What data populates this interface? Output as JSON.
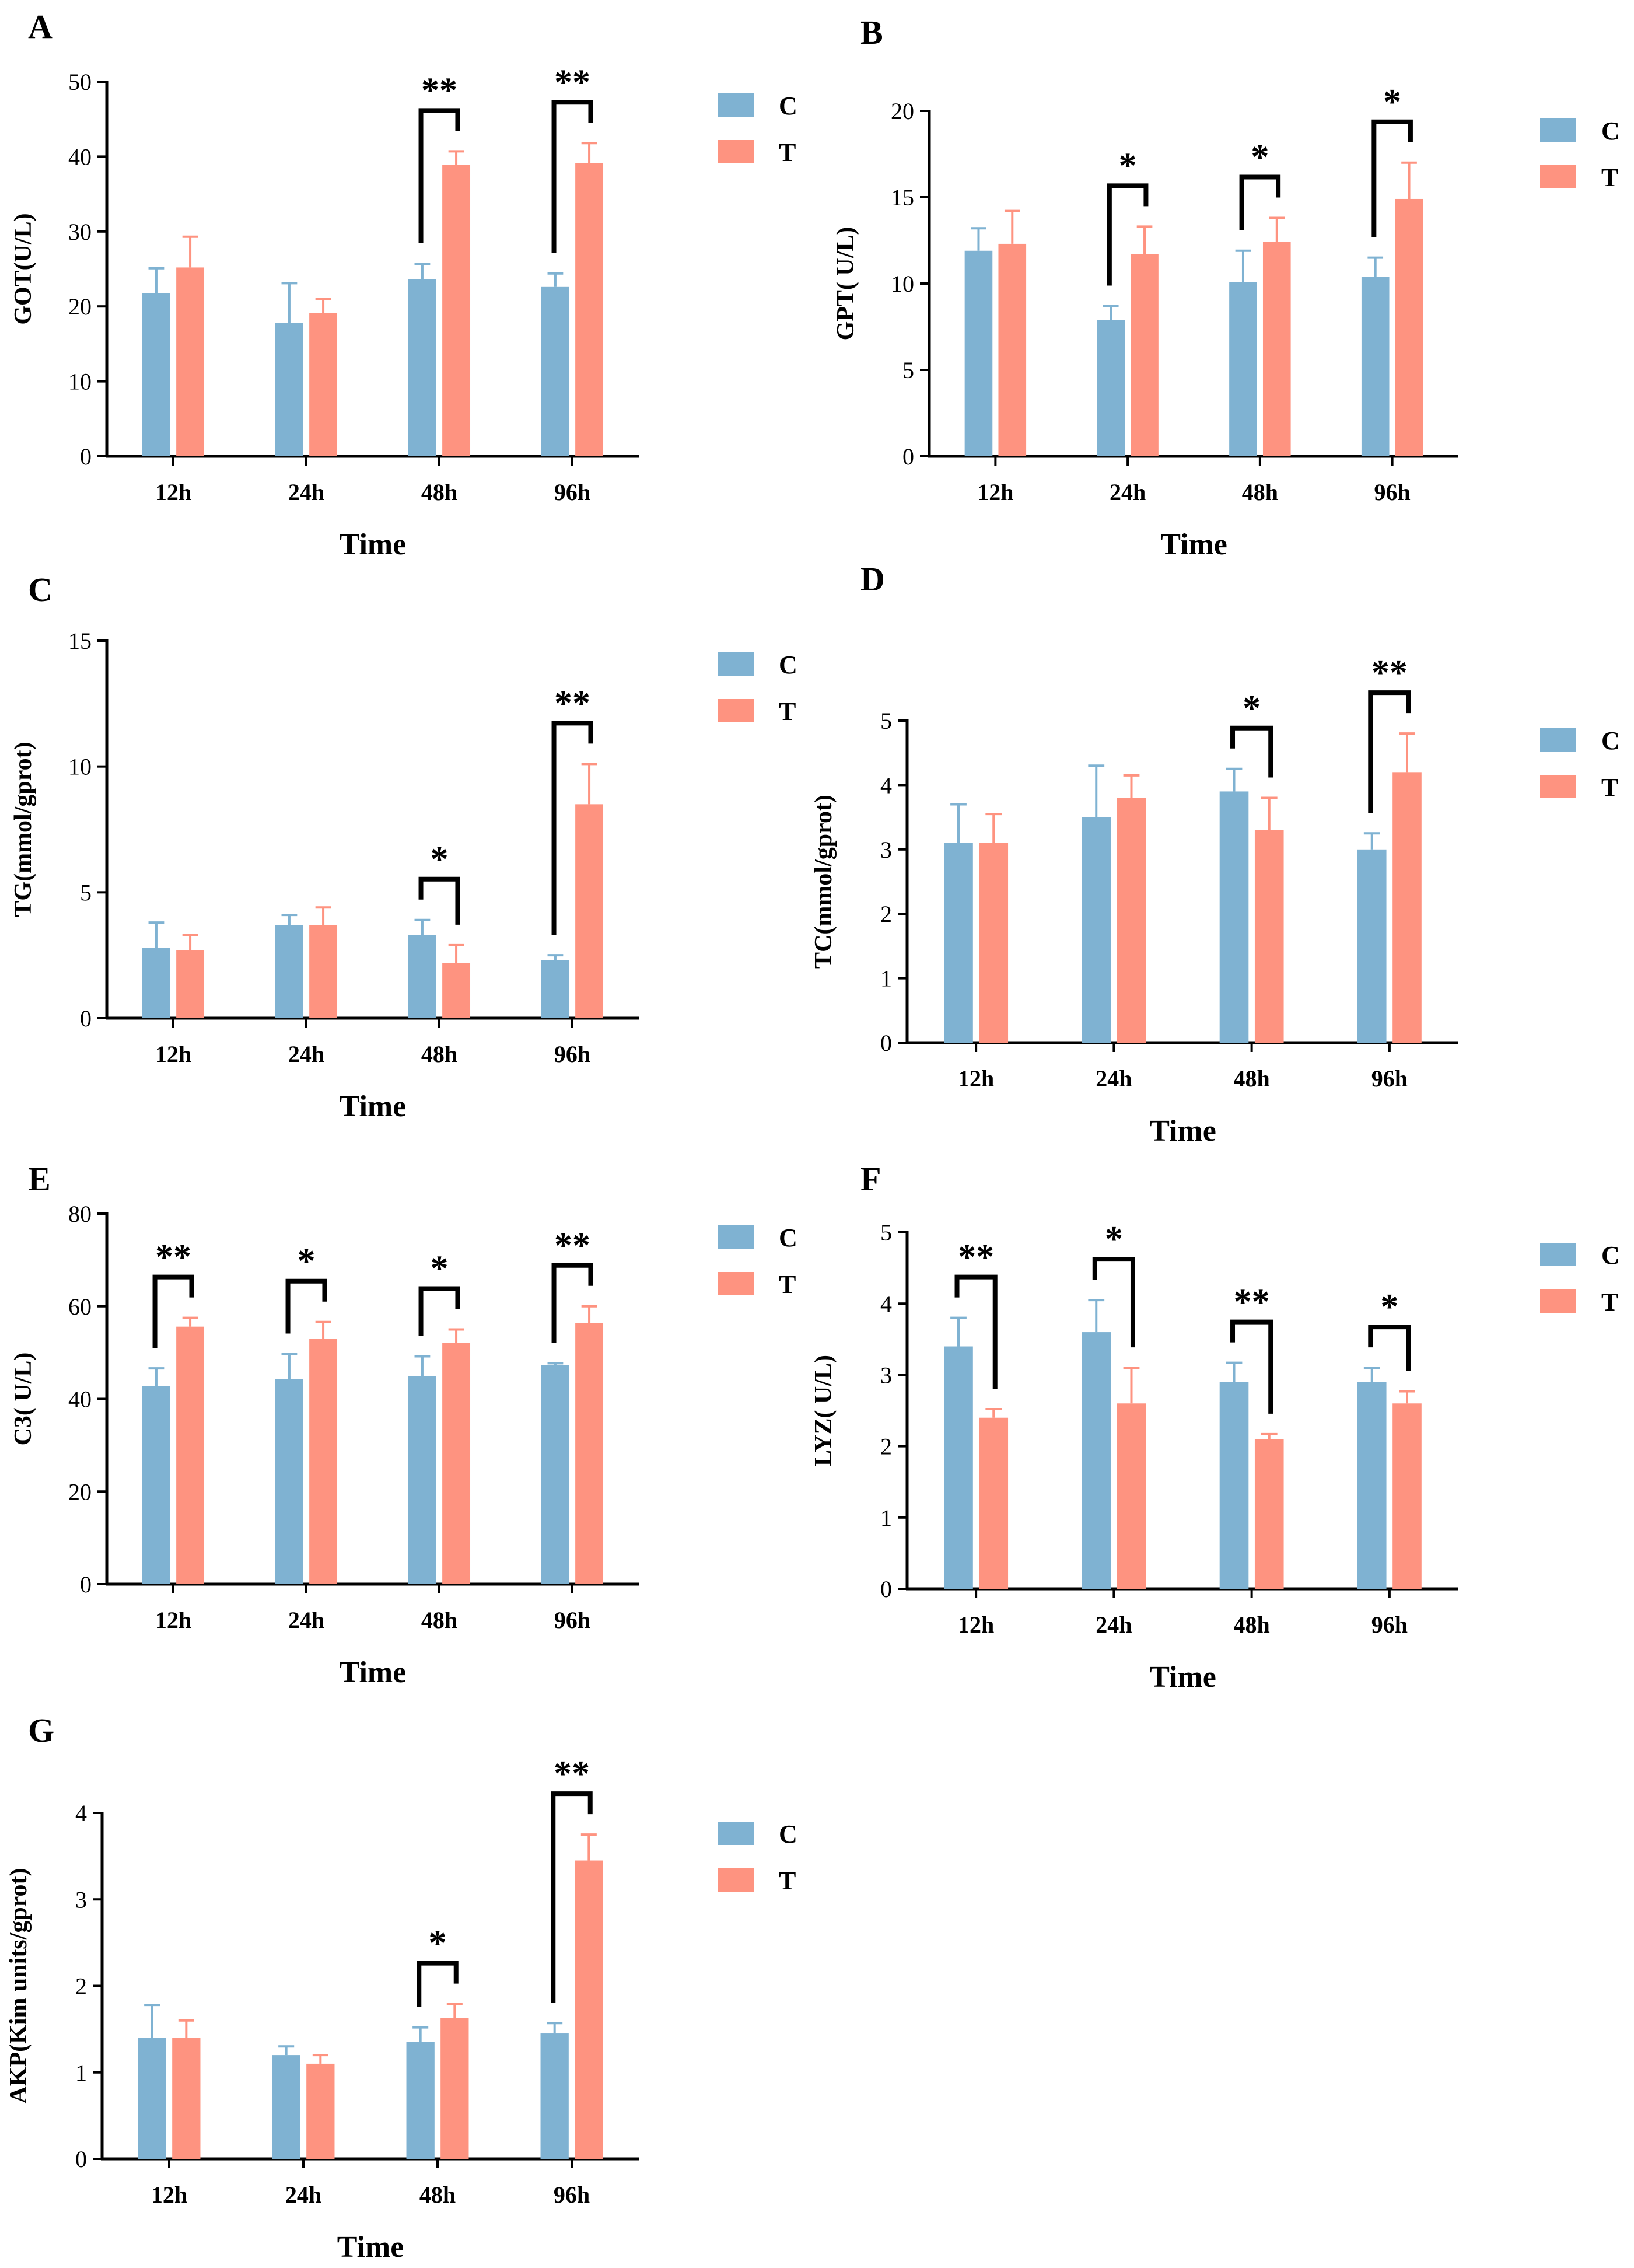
{
  "colors": {
    "C": "#7fb2d2",
    "T": "#fe9380",
    "axis": "#000000"
  },
  "chart_data": [
    {
      "type": "bar",
      "panel": "A",
      "title": "",
      "xlabel": "Time",
      "ylabel": "GOT(U/L)",
      "categories": [
        "12h",
        "24h",
        "48h",
        "96h"
      ],
      "ylim": [
        0,
        50
      ],
      "yticks": [
        0,
        10,
        20,
        30,
        40,
        50
      ],
      "series": [
        {
          "name": "C",
          "values": [
            21.8,
            17.8,
            23.6,
            22.6
          ],
          "errors": [
            3.3,
            5.3,
            2.1,
            1.8
          ]
        },
        {
          "name": "T",
          "values": [
            25.2,
            19.1,
            38.9,
            39.1
          ],
          "errors": [
            4.1,
            1.9,
            1.8,
            2.7
          ]
        }
      ],
      "significance": [
        {
          "category": "48h",
          "label": "**"
        },
        {
          "category": "96h",
          "label": "**"
        }
      ],
      "legend": "right"
    },
    {
      "type": "bar",
      "panel": "B",
      "title": "",
      "xlabel": "Time",
      "ylabel": "GPT( U/L)",
      "categories": [
        "12h",
        "24h",
        "48h",
        "96h"
      ],
      "ylim": [
        0,
        20
      ],
      "yticks": [
        0,
        5,
        10,
        15,
        20
      ],
      "series": [
        {
          "name": "C",
          "values": [
            11.9,
            7.9,
            10.1,
            10.4
          ],
          "errors": [
            1.3,
            0.8,
            1.8,
            1.1
          ]
        },
        {
          "name": "T",
          "values": [
            12.3,
            11.7,
            12.4,
            14.9
          ],
          "errors": [
            1.9,
            1.6,
            1.4,
            2.1
          ]
        }
      ],
      "significance": [
        {
          "category": "24h",
          "label": "*"
        },
        {
          "category": "48h",
          "label": "*"
        },
        {
          "category": "96h",
          "label": "*"
        }
      ],
      "legend": "right"
    },
    {
      "type": "bar",
      "panel": "C",
      "title": "",
      "xlabel": "Time",
      "ylabel": "TG(mmol/gprot)",
      "categories": [
        "12h",
        "24h",
        "48h",
        "96h"
      ],
      "ylim": [
        0,
        15
      ],
      "yticks": [
        0,
        5,
        10,
        15
      ],
      "series": [
        {
          "name": "C",
          "values": [
            2.8,
            3.7,
            3.3,
            2.3
          ],
          "errors": [
            1.0,
            0.4,
            0.6,
            0.2
          ]
        },
        {
          "name": "T",
          "values": [
            2.7,
            3.7,
            2.2,
            8.5
          ],
          "errors": [
            0.6,
            0.7,
            0.7,
            1.6
          ]
        }
      ],
      "significance": [
        {
          "category": "48h",
          "label": "*"
        },
        {
          "category": "96h",
          "label": "**"
        }
      ],
      "legend": "right"
    },
    {
      "type": "bar",
      "panel": "D",
      "title": "",
      "xlabel": "Time",
      "ylabel": "TC(mmol/gprot)",
      "categories": [
        "12h",
        "24h",
        "48h",
        "96h"
      ],
      "ylim": [
        0,
        5
      ],
      "yticks": [
        0,
        1,
        2,
        3,
        4,
        5
      ],
      "series": [
        {
          "name": "C",
          "values": [
            3.1,
            3.5,
            3.9,
            3.0
          ],
          "errors": [
            0.6,
            0.8,
            0.35,
            0.25
          ]
        },
        {
          "name": "T",
          "values": [
            3.1,
            3.8,
            3.3,
            4.2
          ],
          "errors": [
            0.45,
            0.35,
            0.5,
            0.6
          ]
        }
      ],
      "significance": [
        {
          "category": "48h",
          "label": "*"
        },
        {
          "category": "96h",
          "label": "**"
        }
      ],
      "legend": "right"
    },
    {
      "type": "bar",
      "panel": "E",
      "title": "",
      "xlabel": "Time",
      "ylabel": "C3( U/L)",
      "categories": [
        "12h",
        "24h",
        "48h",
        "96h"
      ],
      "ylim": [
        0,
        80
      ],
      "yticks": [
        0,
        20,
        40,
        60,
        80
      ],
      "series": [
        {
          "name": "C",
          "values": [
            42.8,
            44.3,
            44.9,
            47.3
          ],
          "errors": [
            3.8,
            5.4,
            4.3,
            0.4
          ]
        },
        {
          "name": "T",
          "values": [
            55.6,
            53.0,
            52.1,
            56.4
          ],
          "errors": [
            1.9,
            3.6,
            2.9,
            3.6
          ]
        }
      ],
      "significance": [
        {
          "category": "12h",
          "label": "**"
        },
        {
          "category": "24h",
          "label": "*"
        },
        {
          "category": "48h",
          "label": "*"
        },
        {
          "category": "96h",
          "label": "**"
        }
      ],
      "legend": "right"
    },
    {
      "type": "bar",
      "panel": "F",
      "title": "",
      "xlabel": "Time",
      "ylabel": "LYZ( U/L)",
      "categories": [
        "12h",
        "24h",
        "48h",
        "96h"
      ],
      "ylim": [
        0,
        5
      ],
      "yticks": [
        0,
        1,
        2,
        3,
        4,
        5
      ],
      "series": [
        {
          "name": "C",
          "values": [
            3.4,
            3.6,
            2.9,
            2.9
          ],
          "errors": [
            0.4,
            0.45,
            0.27,
            0.2
          ]
        },
        {
          "name": "T",
          "values": [
            2.4,
            2.6,
            2.1,
            2.6
          ],
          "errors": [
            0.12,
            0.5,
            0.07,
            0.17
          ]
        }
      ],
      "significance": [
        {
          "category": "12h",
          "label": "**"
        },
        {
          "category": "24h",
          "label": "*"
        },
        {
          "category": "48h",
          "label": "**"
        },
        {
          "category": "96h",
          "label": "*"
        }
      ],
      "legend": "right"
    },
    {
      "type": "bar",
      "panel": "G",
      "title": "",
      "xlabel": "Time",
      "ylabel": "AKP(Kim units/gprot)",
      "categories": [
        "12h",
        "24h",
        "48h",
        "96h"
      ],
      "ylim": [
        0,
        4
      ],
      "yticks": [
        0,
        1,
        2,
        3,
        4
      ],
      "series": [
        {
          "name": "C",
          "values": [
            1.4,
            1.2,
            1.35,
            1.45
          ],
          "errors": [
            0.38,
            0.1,
            0.17,
            0.12
          ]
        },
        {
          "name": "T",
          "values": [
            1.4,
            1.1,
            1.63,
            3.45
          ],
          "errors": [
            0.2,
            0.1,
            0.16,
            0.3
          ]
        }
      ],
      "significance": [
        {
          "category": "48h",
          "label": "*"
        },
        {
          "category": "96h",
          "label": "**"
        }
      ],
      "legend": "right"
    }
  ]
}
